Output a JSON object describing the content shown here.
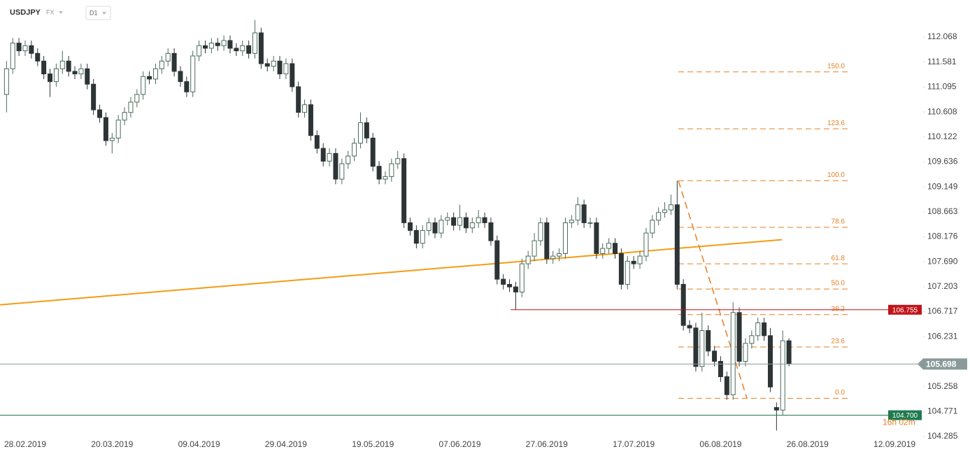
{
  "header": {
    "symbol": "USDJPY",
    "market": "FX",
    "interval": "D1"
  },
  "chart_data": {
    "type": "candlestick",
    "categories": [
      null,
      null,
      null,
      "28.02.2019",
      null,
      null,
      null,
      null,
      null,
      null,
      null,
      null,
      null,
      null,
      null,
      null,
      null,
      "20.03.2019",
      null,
      null,
      null,
      null,
      null,
      null,
      null,
      null,
      null,
      null,
      null,
      null,
      null,
      "09.04.2019",
      null,
      null,
      null,
      null,
      null,
      null,
      null,
      null,
      null,
      null,
      null,
      null,
      null,
      "29.04.2019",
      null,
      null,
      null,
      null,
      null,
      null,
      null,
      null,
      null,
      null,
      null,
      null,
      null,
      "19.05.2019",
      null,
      null,
      null,
      null,
      null,
      null,
      null,
      null,
      null,
      null,
      null,
      null,
      null,
      "07.06.2019",
      null,
      null,
      null,
      null,
      null,
      null,
      null,
      null,
      null,
      null,
      null,
      null,
      null,
      "27.06.2019",
      null,
      null,
      null,
      null,
      null,
      null,
      null,
      null,
      null,
      null,
      null,
      null,
      null,
      "17.07.2019",
      null,
      null,
      null,
      null,
      null,
      null,
      null,
      null,
      null,
      null,
      null,
      null,
      null,
      "06.08.2019",
      null,
      null,
      null,
      null,
      null,
      null,
      null,
      null,
      null,
      null,
      null,
      null,
      null,
      "26.08.2019",
      null,
      null,
      null,
      null,
      null,
      null,
      null,
      null,
      null,
      null,
      null,
      null,
      null,
      "12.09.2019"
    ],
    "open": [
      110.95,
      111.45,
      111.95,
      111.8,
      111.9,
      111.75,
      111.6,
      111.35,
      111.2,
      111.45,
      111.6,
      111.4,
      111.35,
      111.45,
      111.15,
      110.65,
      110.5,
      110.05,
      110.1,
      110.45,
      110.6,
      110.8,
      110.95,
      111.3,
      111.25,
      111.45,
      111.6,
      111.75,
      111.4,
      111.2,
      111.0,
      111.7,
      111.9,
      111.85,
      111.95,
      111.9,
      112.0,
      111.85,
      111.8,
      111.9,
      111.75,
      112.15,
      111.55,
      111.5,
      111.6,
      111.35,
      111.55,
      111.1,
      110.6,
      110.75,
      110.15,
      109.9,
      109.65,
      109.8,
      109.3,
      109.6,
      109.75,
      110.0,
      110.4,
      110.1,
      109.55,
      109.3,
      109.35,
      109.6,
      109.7,
      108.45,
      108.3,
      108.05,
      108.3,
      108.45,
      108.25,
      108.5,
      108.55,
      108.4,
      108.55,
      108.35,
      108.45,
      108.55,
      108.45,
      108.1,
      107.35,
      107.25,
      107.2,
      107.1,
      107.65,
      107.8,
      108.1,
      108.45,
      107.75,
      107.8,
      107.85,
      108.45,
      108.5,
      108.8,
      108.45,
      108.45,
      107.85,
      107.95,
      108.05,
      107.85,
      107.25,
      107.7,
      107.65,
      107.8,
      108.25,
      108.5,
      108.65,
      108.7,
      108.8,
      107.25,
      106.45,
      106.4,
      105.65,
      106.35,
      105.95,
      105.75,
      105.45,
      105.1,
      106.7,
      105.75,
      106.1,
      106.25,
      106.5,
      106.25,
      104.85,
      104.8,
      106.15,
      null,
      null,
      null,
      null,
      null,
      null,
      null,
      null,
      null,
      null,
      null,
      null,
      null,
      null,
      null,
      null,
      null
    ],
    "high": [
      111.6,
      112.05,
      112.05,
      112.0,
      112.0,
      111.85,
      111.7,
      111.45,
      111.55,
      111.8,
      111.7,
      111.5,
      111.55,
      111.55,
      111.25,
      110.75,
      110.6,
      110.2,
      110.55,
      110.7,
      110.9,
      111.05,
      111.4,
      111.4,
      111.55,
      111.7,
      111.85,
      111.85,
      111.5,
      111.3,
      111.8,
      112.0,
      112.0,
      112.05,
      112.05,
      112.1,
      112.1,
      111.95,
      112.0,
      112.0,
      112.4,
      112.25,
      111.65,
      111.7,
      111.7,
      111.65,
      111.65,
      111.2,
      110.85,
      110.85,
      110.25,
      110.0,
      109.9,
      109.9,
      109.7,
      109.85,
      110.1,
      110.6,
      110.5,
      110.2,
      109.65,
      109.45,
      109.7,
      109.85,
      109.8,
      108.55,
      108.4,
      108.4,
      108.55,
      108.55,
      108.6,
      108.65,
      108.65,
      108.8,
      108.65,
      108.55,
      108.7,
      108.65,
      108.55,
      108.2,
      107.45,
      107.35,
      107.3,
      107.75,
      107.9,
      108.25,
      108.55,
      108.55,
      107.9,
      107.95,
      108.55,
      108.6,
      108.95,
      108.9,
      108.55,
      108.55,
      108.05,
      108.15,
      108.15,
      107.95,
      107.8,
      107.8,
      107.9,
      108.35,
      108.6,
      108.75,
      108.85,
      109.0,
      109.27,
      107.35,
      106.55,
      106.5,
      106.7,
      106.45,
      106.05,
      105.85,
      105.55,
      106.9,
      106.8,
      106.2,
      106.35,
      106.6,
      106.6,
      106.4,
      104.95,
      106.35,
      106.2,
      null,
      null,
      null,
      null,
      null,
      null,
      null,
      null,
      null,
      null,
      null,
      null,
      null,
      null,
      null,
      null,
      null
    ],
    "low": [
      110.6,
      111.35,
      111.7,
      111.7,
      111.65,
      111.5,
      111.25,
      110.9,
      111.1,
      111.35,
      111.3,
      111.25,
      111.25,
      111.05,
      110.55,
      110.4,
      109.95,
      109.8,
      110.0,
      110.35,
      110.5,
      110.7,
      110.85,
      111.15,
      111.15,
      111.35,
      111.5,
      111.3,
      111.1,
      110.9,
      110.9,
      111.6,
      111.75,
      111.75,
      111.8,
      111.8,
      111.75,
      111.7,
      111.7,
      111.65,
      111.65,
      111.45,
      111.4,
      111.4,
      111.25,
      111.25,
      111.0,
      110.5,
      110.5,
      110.05,
      109.8,
      109.55,
      109.55,
      109.2,
      109.2,
      109.5,
      109.65,
      109.9,
      110.0,
      109.45,
      109.2,
      109.2,
      109.25,
      109.5,
      108.35,
      108.2,
      107.95,
      107.95,
      108.2,
      108.15,
      108.15,
      108.4,
      108.3,
      108.3,
      108.25,
      108.25,
      108.35,
      108.35,
      108.0,
      107.25,
      107.15,
      107.1,
      106.75,
      107.0,
      107.55,
      107.7,
      108.0,
      107.65,
      107.65,
      107.7,
      107.75,
      108.35,
      108.4,
      108.35,
      108.35,
      107.75,
      107.75,
      107.85,
      107.75,
      107.15,
      107.15,
      107.55,
      107.55,
      107.7,
      108.15,
      108.4,
      108.55,
      108.6,
      107.15,
      106.35,
      106.3,
      105.55,
      105.55,
      105.85,
      105.65,
      105.35,
      105.0,
      105.0,
      105.65,
      105.65,
      106.0,
      106.15,
      106.15,
      105.15,
      104.4,
      104.7,
      105.65,
      null,
      null,
      null,
      null,
      null,
      null,
      null,
      null,
      null,
      null,
      null,
      null,
      null,
      null,
      null,
      null,
      null
    ],
    "close": [
      111.45,
      111.95,
      111.8,
      111.9,
      111.75,
      111.6,
      111.35,
      111.2,
      111.45,
      111.6,
      111.4,
      111.35,
      111.45,
      111.15,
      110.65,
      110.5,
      110.05,
      110.1,
      110.45,
      110.6,
      110.8,
      110.95,
      111.3,
      111.25,
      111.45,
      111.6,
      111.75,
      111.4,
      111.2,
      111.0,
      111.7,
      111.9,
      111.85,
      111.95,
      111.9,
      112.0,
      111.85,
      111.8,
      111.9,
      111.75,
      112.15,
      111.55,
      111.5,
      111.6,
      111.35,
      111.55,
      111.1,
      110.6,
      110.75,
      110.15,
      109.9,
      109.65,
      109.8,
      109.3,
      109.6,
      109.75,
      110.0,
      110.4,
      110.1,
      109.55,
      109.3,
      109.35,
      109.6,
      109.7,
      108.45,
      108.3,
      108.05,
      108.3,
      108.45,
      108.25,
      108.5,
      108.55,
      108.4,
      108.55,
      108.35,
      108.45,
      108.55,
      108.45,
      108.1,
      107.35,
      107.25,
      107.2,
      107.1,
      107.65,
      107.8,
      108.1,
      108.45,
      107.75,
      107.8,
      107.85,
      108.45,
      108.5,
      108.8,
      108.45,
      108.45,
      107.85,
      107.95,
      108.05,
      107.85,
      107.25,
      107.7,
      107.65,
      107.8,
      108.25,
      108.5,
      108.65,
      108.7,
      108.8,
      107.25,
      106.45,
      106.4,
      105.65,
      106.35,
      105.95,
      105.75,
      105.45,
      105.1,
      106.7,
      105.75,
      106.1,
      106.25,
      106.5,
      106.25,
      105.25,
      104.8,
      106.15,
      105.7,
      null,
      null,
      null,
      null,
      null,
      null,
      null,
      null,
      null,
      null,
      null,
      null,
      null,
      null,
      null,
      null,
      null
    ],
    "up_color": "#ffffff",
    "down_color": "#2d3436",
    "outline_color": "#4a6b5c",
    "ylim": [
      104.285,
      112.79
    ],
    "yticks": [
      112.068,
      111.581,
      111.095,
      110.608,
      110.122,
      109.636,
      109.149,
      108.663,
      108.176,
      {
        "value": 107.69,
        "label": "107.690"
      },
      107.203,
      106.717,
      106.231,
      105.258,
      104.771,
      104.285
    ],
    "trendline": {
      "values": [
        106.85,
        108.12
      ],
      "color": "#f39c12"
    },
    "fib_levels": [
      {
        "value": 111.39,
        "label": "150.0"
      },
      {
        "value": 110.28,
        "label": "123.6"
      },
      {
        "value": 109.27,
        "label": "100.0"
      },
      {
        "value": 108.36,
        "label": "78.6"
      },
      {
        "value": 107.65,
        "label": "61.8"
      },
      {
        "value": 107.16,
        "label": "50.0"
      },
      {
        "value": 106.66,
        "label": "38.2"
      },
      {
        "value": 106.03,
        "label": "23.6"
      },
      {
        "value": 105.03,
        "label": "0.0"
      }
    ],
    "fib_color": "#e67e22",
    "price_lines": [
      {
        "value": 106.755,
        "color": "#c0141a"
      },
      {
        "value": {
          "value": 104.7,
          "label": "104.700"
        },
        "color": "#1e7a4f"
      },
      {
        "value": 105.698,
        "color": "#8a9a9a"
      }
    ],
    "countdown": "16h 02m"
  }
}
